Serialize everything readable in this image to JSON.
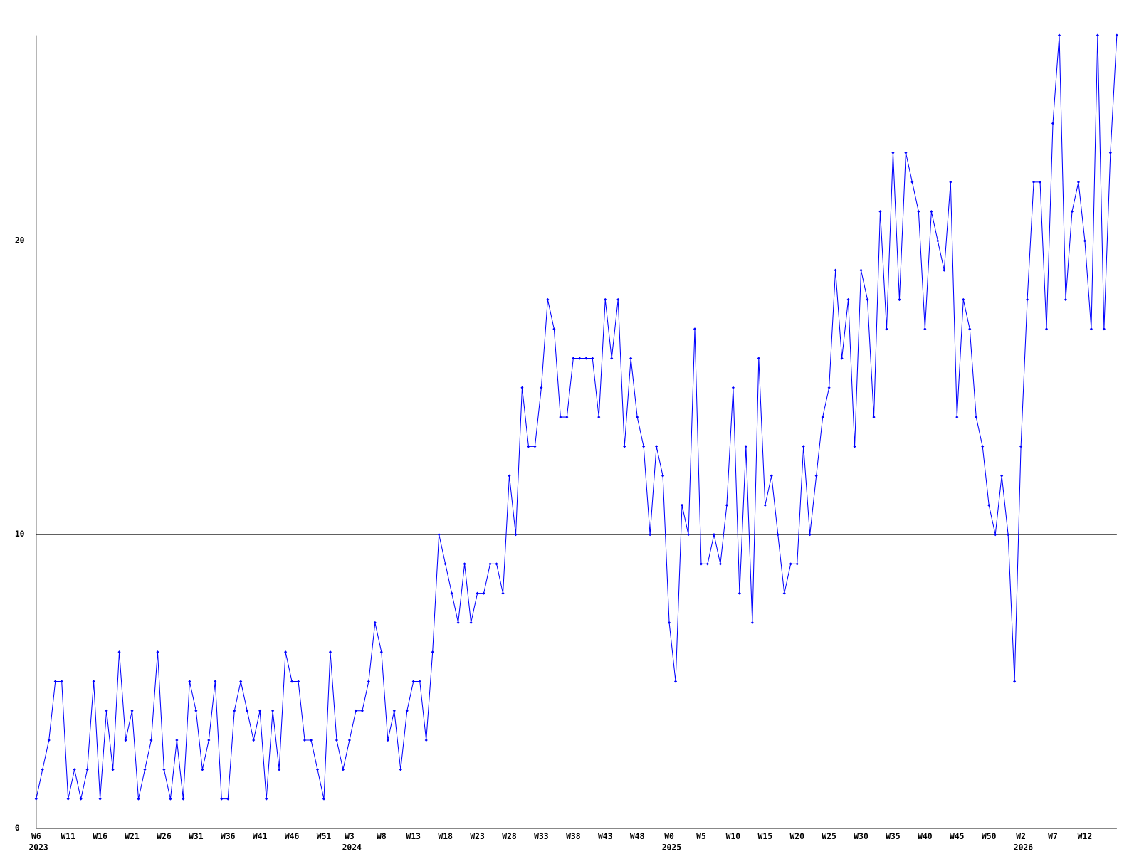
{
  "chart_data": {
    "type": "line",
    "categories": [
      "W6",
      null,
      null,
      null,
      null,
      "W11",
      null,
      null,
      null,
      null,
      "W16",
      null,
      null,
      null,
      null,
      "W21",
      null,
      null,
      null,
      null,
      "W26",
      null,
      null,
      null,
      null,
      "W31",
      null,
      null,
      null,
      null,
      "W36",
      null,
      null,
      null,
      null,
      "W41",
      null,
      null,
      null,
      null,
      "W46",
      null,
      null,
      null,
      null,
      "W51",
      null,
      null,
      null,
      "W3",
      null,
      null,
      null,
      null,
      "W8",
      null,
      null,
      null,
      null,
      "W13",
      null,
      null,
      null,
      null,
      "W18",
      null,
      null,
      null,
      null,
      "W23",
      null,
      null,
      null,
      null,
      "W28",
      null,
      null,
      null,
      null,
      "W33",
      null,
      null,
      null,
      null,
      "W38",
      null,
      null,
      null,
      null,
      "W43",
      null,
      null,
      null,
      null,
      "W48",
      null,
      null,
      null,
      null,
      "W0",
      null,
      null,
      null,
      null,
      "W5",
      null,
      null,
      null,
      null,
      "W10",
      null,
      null,
      null,
      null,
      "W15",
      null,
      null,
      null,
      null,
      "W20",
      null,
      null,
      null,
      null,
      "W25",
      null,
      null,
      null,
      null,
      "W30",
      null,
      null,
      null,
      null,
      "W35",
      null,
      null,
      null,
      null,
      "W40",
      null,
      null,
      null,
      null,
      "W45",
      null,
      null,
      null,
      null,
      "W50",
      null,
      null,
      null,
      null,
      "W2",
      null,
      null,
      null,
      null,
      "W7",
      null,
      null,
      null,
      null,
      "W12",
      null,
      null,
      null,
      null,
      null
    ],
    "category_years": [
      "2023",
      null,
      null,
      null,
      null,
      null,
      null,
      null,
      null,
      null,
      null,
      null,
      null,
      null,
      null,
      null,
      null,
      null,
      null,
      null,
      null,
      null,
      null,
      null,
      null,
      null,
      null,
      null,
      null,
      null,
      null,
      null,
      null,
      null,
      null,
      null,
      null,
      null,
      null,
      null,
      null,
      null,
      null,
      null,
      null,
      null,
      null,
      null,
      null,
      "2024",
      null,
      null,
      null,
      null,
      null,
      null,
      null,
      null,
      null,
      null,
      null,
      null,
      null,
      null,
      null,
      null,
      null,
      null,
      null,
      null,
      null,
      null,
      null,
      null,
      null,
      null,
      null,
      null,
      null,
      null,
      null,
      null,
      null,
      null,
      null,
      null,
      null,
      null,
      null,
      null,
      null,
      null,
      null,
      null,
      null,
      null,
      null,
      null,
      null,
      "2025",
      null,
      null,
      null,
      null,
      null,
      null,
      null,
      null,
      null,
      null,
      null,
      null,
      null,
      null,
      null,
      null,
      null,
      null,
      null,
      null,
      null,
      null,
      null,
      null,
      null,
      null,
      null,
      null,
      null,
      null,
      null,
      null,
      null,
      null,
      null,
      null,
      null,
      null,
      null,
      null,
      null,
      null,
      null,
      null,
      null,
      null,
      null,
      null,
      null,
      null,
      null,
      null,
      null,
      null,
      "2026",
      null,
      null,
      null,
      null,
      null,
      null,
      null,
      null,
      null,
      null,
      null,
      null,
      null,
      null,
      null
    ],
    "series": [
      {
        "color": "#0000ff",
        "values": [
          1,
          2,
          3,
          5,
          5,
          1,
          2,
          1,
          2,
          5,
          1,
          4,
          2,
          6,
          3,
          4,
          1,
          2,
          3,
          6,
          2,
          1,
          3,
          1,
          5,
          4,
          2,
          3,
          5,
          1,
          1,
          4,
          5,
          4,
          3,
          4,
          1,
          4,
          2,
          6,
          5,
          5,
          3,
          3,
          2,
          1,
          6,
          3,
          2,
          3,
          4,
          4,
          5,
          7,
          6,
          3,
          4,
          2,
          4,
          5,
          5,
          3,
          6,
          10,
          9,
          8,
          7,
          9,
          7,
          8,
          8,
          9,
          9,
          8,
          12,
          10,
          15,
          13,
          13,
          15,
          18,
          17,
          14,
          14,
          16,
          16,
          16,
          16,
          14,
          18,
          16,
          18,
          13,
          16,
          14,
          13,
          10,
          13,
          12,
          7,
          5,
          11,
          10,
          17,
          9,
          9,
          10,
          9,
          11,
          15,
          8,
          13,
          7,
          16,
          11,
          12,
          10,
          8,
          9,
          9,
          13,
          10,
          12,
          14,
          15,
          19,
          16,
          18,
          13,
          19,
          18,
          14,
          21,
          17,
          23,
          18,
          23,
          22,
          21,
          17,
          21,
          20,
          19,
          22,
          14,
          18,
          17,
          14,
          13,
          11,
          10,
          12,
          10,
          5,
          13,
          18,
          22,
          22,
          17,
          24,
          27,
          18,
          21,
          22,
          20,
          17,
          27,
          17,
          23,
          27
        ]
      }
    ],
    "ylim": [
      0,
      27
    ],
    "yticks": [
      0,
      10,
      20
    ],
    "grid": true
  }
}
